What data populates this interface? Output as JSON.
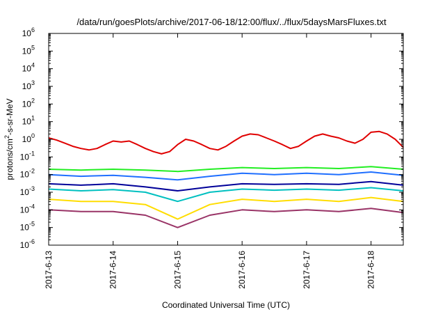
{
  "chart_data": {
    "type": "line",
    "title": "/data/run/goesPlots/archive/2017-06-18/12:00/flux/../flux/5daysMarsFluxes.txt",
    "xlabel": "Coordinated Universal Time (UTC)",
    "ylabel_parts": [
      "protons/cm",
      "2",
      "-s-sr-MeV"
    ],
    "yscale": "log",
    "ylim": [
      1e-06,
      1000000.0
    ],
    "xlim": [
      "2017-06-13 00:00",
      "2017-06-18 12:00"
    ],
    "x_ticks": [
      "2017-6-13",
      "2017-6-14",
      "2017-6-15",
      "2017-6-16",
      "2017-6-17",
      "2017-6-18"
    ],
    "y_ticks": [
      {
        "base": "10",
        "exp": "-6"
      },
      {
        "base": "10",
        "exp": "-5"
      },
      {
        "base": "10",
        "exp": "-4"
      },
      {
        "base": "10",
        "exp": "-3"
      },
      {
        "base": "10",
        "exp": "-2"
      },
      {
        "base": "10",
        "exp": "-1"
      },
      {
        "base": "10",
        "exp": "0"
      },
      {
        "base": "10",
        "exp": "1"
      },
      {
        "base": "10",
        "exp": "2"
      },
      {
        "base": "10",
        "exp": "3"
      },
      {
        "base": "10",
        "exp": "4"
      },
      {
        "base": "10",
        "exp": "5"
      },
      {
        "base": "10",
        "exp": "6"
      }
    ],
    "grid": false,
    "legend": "none",
    "series": [
      {
        "color": "#e00000",
        "x": [
          "2017-06-13 00:00",
          "2017-06-13 03:00",
          "2017-06-13 06:00",
          "2017-06-13 09:00",
          "2017-06-13 12:00",
          "2017-06-13 15:00",
          "2017-06-13 18:00",
          "2017-06-13 21:00",
          "2017-06-14 00:00",
          "2017-06-14 03:00",
          "2017-06-14 06:00",
          "2017-06-14 09:00",
          "2017-06-14 12:00",
          "2017-06-14 15:00",
          "2017-06-14 18:00",
          "2017-06-14 21:00",
          "2017-06-15 00:00",
          "2017-06-15 03:00",
          "2017-06-15 06:00",
          "2017-06-15 09:00",
          "2017-06-15 12:00",
          "2017-06-15 15:00",
          "2017-06-15 18:00",
          "2017-06-15 21:00",
          "2017-06-16 00:00",
          "2017-06-16 03:00",
          "2017-06-16 06:00",
          "2017-06-16 09:00",
          "2017-06-16 12:00",
          "2017-06-16 15:00",
          "2017-06-16 18:00",
          "2017-06-16 21:00",
          "2017-06-17 00:00",
          "2017-06-17 03:00",
          "2017-06-17 06:00",
          "2017-06-17 09:00",
          "2017-06-17 12:00",
          "2017-06-17 15:00",
          "2017-06-17 18:00",
          "2017-06-17 21:00",
          "2017-06-18 00:00",
          "2017-06-18 03:00",
          "2017-06-18 06:00",
          "2017-06-18 09:00",
          "2017-06-18 12:00"
        ],
        "values": [
          1.2,
          0.9,
          0.6,
          0.4,
          0.3,
          0.25,
          0.3,
          0.5,
          0.8,
          0.7,
          0.8,
          0.5,
          0.3,
          0.2,
          0.15,
          0.2,
          0.5,
          1.0,
          0.8,
          0.5,
          0.3,
          0.25,
          0.4,
          0.8,
          1.5,
          2.0,
          1.8,
          1.2,
          0.8,
          0.5,
          0.3,
          0.4,
          0.8,
          1.5,
          2.0,
          1.5,
          1.2,
          0.8,
          0.6,
          1.0,
          2.5,
          2.8,
          2.0,
          1.0,
          0.35
        ]
      },
      {
        "color": "#22ee22",
        "x": [
          "2017-06-13 00:00",
          "2017-06-13 12:00",
          "2017-06-14 00:00",
          "2017-06-14 12:00",
          "2017-06-15 00:00",
          "2017-06-15 12:00",
          "2017-06-16 00:00",
          "2017-06-16 12:00",
          "2017-06-17 00:00",
          "2017-06-17 12:00",
          "2017-06-18 00:00",
          "2017-06-18 12:00"
        ],
        "values": [
          0.02,
          0.018,
          0.02,
          0.018,
          0.015,
          0.02,
          0.025,
          0.022,
          0.025,
          0.022,
          0.028,
          0.02
        ]
      },
      {
        "color": "#1f6fff",
        "x": [
          "2017-06-13 00:00",
          "2017-06-13 12:00",
          "2017-06-14 00:00",
          "2017-06-14 12:00",
          "2017-06-15 00:00",
          "2017-06-15 12:00",
          "2017-06-16 00:00",
          "2017-06-16 12:00",
          "2017-06-17 00:00",
          "2017-06-17 12:00",
          "2017-06-18 00:00",
          "2017-06-18 12:00"
        ],
        "values": [
          0.01,
          0.008,
          0.009,
          0.007,
          0.005,
          0.008,
          0.012,
          0.01,
          0.012,
          0.01,
          0.014,
          0.009
        ]
      },
      {
        "color": "#000099",
        "x": [
          "2017-06-13 00:00",
          "2017-06-13 12:00",
          "2017-06-14 00:00",
          "2017-06-14 12:00",
          "2017-06-15 00:00",
          "2017-06-15 12:00",
          "2017-06-16 00:00",
          "2017-06-16 12:00",
          "2017-06-17 00:00",
          "2017-06-17 12:00",
          "2017-06-18 00:00",
          "2017-06-18 12:00"
        ],
        "values": [
          0.003,
          0.0025,
          0.003,
          0.002,
          0.0012,
          0.002,
          0.003,
          0.0028,
          0.003,
          0.0028,
          0.004,
          0.0025
        ]
      },
      {
        "color": "#00c0c0",
        "x": [
          "2017-06-13 00:00",
          "2017-06-13 12:00",
          "2017-06-14 00:00",
          "2017-06-14 12:00",
          "2017-06-15 00:00",
          "2017-06-15 12:00",
          "2017-06-16 00:00",
          "2017-06-16 12:00",
          "2017-06-17 00:00",
          "2017-06-17 12:00",
          "2017-06-18 00:00",
          "2017-06-18 12:00"
        ],
        "values": [
          0.0015,
          0.0012,
          0.0014,
          0.001,
          0.0003,
          0.001,
          0.0015,
          0.0013,
          0.0015,
          0.0013,
          0.0018,
          0.0012
        ]
      },
      {
        "color": "#ffdd00",
        "x": [
          "2017-06-13 00:00",
          "2017-06-13 12:00",
          "2017-06-14 00:00",
          "2017-06-14 12:00",
          "2017-06-15 00:00",
          "2017-06-15 12:00",
          "2017-06-16 00:00",
          "2017-06-16 12:00",
          "2017-06-17 00:00",
          "2017-06-17 12:00",
          "2017-06-18 00:00",
          "2017-06-18 12:00"
        ],
        "values": [
          0.0004,
          0.0003,
          0.0003,
          0.0002,
          3e-05,
          0.0002,
          0.0004,
          0.0003,
          0.0004,
          0.0003,
          0.0005,
          0.0003
        ]
      },
      {
        "color": "#993366",
        "x": [
          "2017-06-13 00:00",
          "2017-06-13 12:00",
          "2017-06-14 00:00",
          "2017-06-14 12:00",
          "2017-06-15 00:00",
          "2017-06-15 12:00",
          "2017-06-16 00:00",
          "2017-06-16 12:00",
          "2017-06-17 00:00",
          "2017-06-17 12:00",
          "2017-06-18 00:00",
          "2017-06-18 12:00"
        ],
        "values": [
          0.0001,
          8e-05,
          8e-05,
          5e-05,
          1e-05,
          5e-05,
          0.0001,
          8e-05,
          0.0001,
          8e-05,
          0.00012,
          7e-05
        ]
      }
    ]
  }
}
